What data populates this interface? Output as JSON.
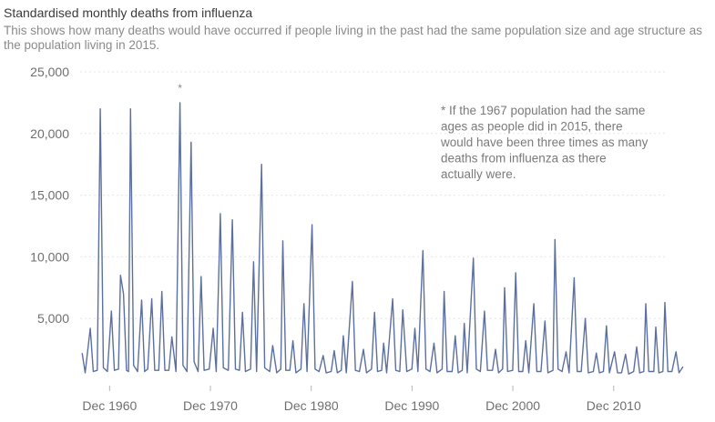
{
  "title": "Standardised monthly deaths from influenza",
  "subtitle": "This shows how many deaths would have occurred if people living in the past had the same population size and age structure as the population living in 2015.",
  "chart_data": {
    "type": "line",
    "title": "Standardised monthly deaths from influenza",
    "xlabel": "",
    "ylabel": "",
    "ylim": [
      0,
      25000
    ],
    "yticks": [
      5000,
      10000,
      15000,
      20000,
      25000
    ],
    "ytick_labels": [
      "5,000",
      "10,000",
      "15,000",
      "20,000",
      "25,000"
    ],
    "xlim": [
      1958.0,
      2016.0
    ],
    "xtick_labels": [
      "Dec 1960",
      "Dec 1970",
      "Dec 1980",
      "Dec 1990",
      "Dec 2000",
      "Dec 2010"
    ],
    "xticks": [
      1960.92,
      1970.92,
      1980.92,
      1990.92,
      2000.92,
      2010.92
    ],
    "grid": true,
    "series": [
      {
        "color": "#5b6fa0",
        "points": [
          [
            1958.2,
            2200
          ],
          [
            1958.5,
            600
          ],
          [
            1959.0,
            4200
          ],
          [
            1959.3,
            700
          ],
          [
            1959.7,
            800
          ],
          [
            1960.0,
            22000
          ],
          [
            1960.3,
            1000
          ],
          [
            1960.7,
            700
          ],
          [
            1961.1,
            5600
          ],
          [
            1961.4,
            800
          ],
          [
            1961.8,
            900
          ],
          [
            1962.0,
            8500
          ],
          [
            1962.3,
            7000
          ],
          [
            1962.6,
            800
          ],
          [
            1962.8,
            700
          ],
          [
            1963.0,
            22000
          ],
          [
            1963.3,
            1200
          ],
          [
            1963.7,
            700
          ],
          [
            1964.1,
            6500
          ],
          [
            1964.4,
            700
          ],
          [
            1964.7,
            900
          ],
          [
            1965.1,
            6600
          ],
          [
            1965.4,
            800
          ],
          [
            1965.8,
            800
          ],
          [
            1966.1,
            7200
          ],
          [
            1966.4,
            800
          ],
          [
            1966.8,
            800
          ],
          [
            1967.1,
            3500
          ],
          [
            1967.5,
            700
          ],
          [
            1967.9,
            22500
          ],
          [
            1968.2,
            1200
          ],
          [
            1968.6,
            700
          ],
          [
            1969.0,
            19300
          ],
          [
            1969.3,
            1500
          ],
          [
            1969.7,
            700
          ],
          [
            1970.0,
            8400
          ],
          [
            1970.3,
            800
          ],
          [
            1970.8,
            900
          ],
          [
            1971.2,
            4200
          ],
          [
            1971.5,
            700
          ],
          [
            1971.9,
            13500
          ],
          [
            1972.2,
            1000
          ],
          [
            1972.7,
            800
          ],
          [
            1973.1,
            13000
          ],
          [
            1973.4,
            900
          ],
          [
            1973.8,
            800
          ],
          [
            1974.1,
            5500
          ],
          [
            1974.4,
            700
          ],
          [
            1974.9,
            900
          ],
          [
            1975.2,
            9600
          ],
          [
            1975.5,
            700
          ],
          [
            1976.0,
            17500
          ],
          [
            1976.3,
            1000
          ],
          [
            1976.8,
            700
          ],
          [
            1977.1,
            2800
          ],
          [
            1977.5,
            600
          ],
          [
            1977.9,
            900
          ],
          [
            1978.1,
            11300
          ],
          [
            1978.4,
            800
          ],
          [
            1978.8,
            800
          ],
          [
            1979.1,
            3200
          ],
          [
            1979.4,
            600
          ],
          [
            1979.9,
            900
          ],
          [
            1980.2,
            6200
          ],
          [
            1980.5,
            700
          ],
          [
            1981.0,
            12600
          ],
          [
            1981.3,
            900
          ],
          [
            1981.7,
            700
          ],
          [
            1982.1,
            2000
          ],
          [
            1982.4,
            600
          ],
          [
            1982.9,
            700
          ],
          [
            1983.2,
            2400
          ],
          [
            1983.5,
            600
          ],
          [
            1983.9,
            800
          ],
          [
            1984.1,
            3600
          ],
          [
            1984.4,
            600
          ],
          [
            1985.0,
            8000
          ],
          [
            1985.3,
            800
          ],
          [
            1985.7,
            700
          ],
          [
            1986.1,
            2500
          ],
          [
            1986.4,
            600
          ],
          [
            1986.9,
            900
          ],
          [
            1987.2,
            5500
          ],
          [
            1987.5,
            700
          ],
          [
            1987.9,
            800
          ],
          [
            1988.1,
            3000
          ],
          [
            1988.4,
            600
          ],
          [
            1989.0,
            6600
          ],
          [
            1989.3,
            800
          ],
          [
            1989.7,
            700
          ],
          [
            1990.0,
            5700
          ],
          [
            1990.4,
            700
          ],
          [
            1990.9,
            900
          ],
          [
            1991.2,
            4200
          ],
          [
            1991.5,
            700
          ],
          [
            1992.0,
            10500
          ],
          [
            1992.3,
            900
          ],
          [
            1992.7,
            700
          ],
          [
            1993.1,
            3000
          ],
          [
            1993.4,
            600
          ],
          [
            1993.9,
            900
          ],
          [
            1994.1,
            7200
          ],
          [
            1994.4,
            700
          ],
          [
            1994.9,
            700
          ],
          [
            1995.2,
            3600
          ],
          [
            1995.5,
            600
          ],
          [
            1995.9,
            800
          ],
          [
            1996.1,
            4600
          ],
          [
            1996.4,
            600
          ],
          [
            1997.0,
            9900
          ],
          [
            1997.3,
            900
          ],
          [
            1997.7,
            700
          ],
          [
            1998.1,
            5600
          ],
          [
            1998.4,
            800
          ],
          [
            1998.9,
            800
          ],
          [
            1999.2,
            2500
          ],
          [
            1999.5,
            600
          ],
          [
            1999.9,
            900
          ],
          [
            2000.1,
            7500
          ],
          [
            2000.4,
            700
          ],
          [
            2000.9,
            800
          ],
          [
            2001.2,
            8700
          ],
          [
            2001.5,
            700
          ],
          [
            2001.9,
            700
          ],
          [
            2002.2,
            3200
          ],
          [
            2002.5,
            600
          ],
          [
            2003.0,
            6200
          ],
          [
            2003.3,
            700
          ],
          [
            2003.7,
            700
          ],
          [
            2004.1,
            4800
          ],
          [
            2004.4,
            600
          ],
          [
            2004.9,
            800
          ],
          [
            2005.1,
            11400
          ],
          [
            2005.4,
            900
          ],
          [
            2005.8,
            700
          ],
          [
            2006.2,
            2300
          ],
          [
            2006.5,
            600
          ],
          [
            2007.0,
            8300
          ],
          [
            2007.3,
            700
          ],
          [
            2007.7,
            700
          ],
          [
            2008.1,
            5000
          ],
          [
            2008.4,
            600
          ],
          [
            2008.9,
            700
          ],
          [
            2009.2,
            2200
          ],
          [
            2009.5,
            600
          ],
          [
            2009.9,
            700
          ],
          [
            2010.2,
            4400
          ],
          [
            2010.5,
            600
          ],
          [
            2011.0,
            2300
          ],
          [
            2011.3,
            600
          ],
          [
            2011.7,
            600
          ],
          [
            2012.1,
            2100
          ],
          [
            2012.4,
            500
          ],
          [
            2012.9,
            700
          ],
          [
            2013.2,
            2700
          ],
          [
            2013.5,
            600
          ],
          [
            2013.9,
            700
          ],
          [
            2014.1,
            6200
          ],
          [
            2014.4,
            700
          ],
          [
            2014.9,
            700
          ],
          [
            2015.1,
            4300
          ],
          [
            2015.4,
            600
          ],
          [
            2015.8,
            700
          ],
          [
            2016.0,
            6300
          ],
          [
            2016.3,
            700
          ],
          [
            2016.7,
            700
          ],
          [
            2017.1,
            2300
          ],
          [
            2017.4,
            600
          ],
          [
            2017.8,
            1100
          ]
        ]
      }
    ],
    "annotations": [
      {
        "marker": "*",
        "x": 1967.9
      },
      {
        "text": "* If the 1967 population had the same\nages as people did in 2015, there\nwould have been three times as many\ndeaths from influenza as there\nactually were."
      }
    ]
  }
}
